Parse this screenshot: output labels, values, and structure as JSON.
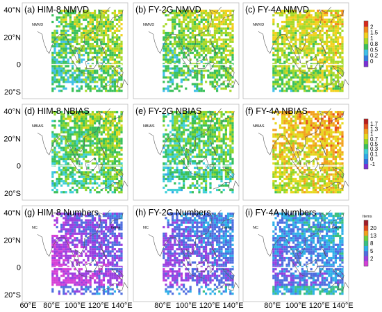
{
  "colormaps": {
    "nmvd": {
      "colors": [
        "#7b2fd6",
        "#2f7fe0",
        "#3fc0e8",
        "#39c05a",
        "#a6d92a",
        "#f2d11d",
        "#f28a1d",
        "#d62a1d"
      ],
      "labels": [
        "0",
        "0.2",
        "0.5",
        "0.8",
        "1",
        "1.5",
        "2"
      ]
    },
    "nbias": {
      "colors": [
        "#7b2fd6",
        "#2f70e0",
        "#2fa8e8",
        "#3fd0d8",
        "#39c05a",
        "#8fd62a",
        "#e6d81d",
        "#f2a01d",
        "#e5521d",
        "#b81d1d"
      ],
      "labels": [
        "-1",
        "0",
        "0.1",
        "0.3",
        "0.5",
        "0.7",
        "1",
        "1.3",
        "1.7"
      ]
    },
    "numbers": {
      "colors": [
        "#d53fd6",
        "#9b3fe0",
        "#4f6ee0",
        "#2fb0e8",
        "#39c080",
        "#6fcf3a",
        "#f2a01d",
        "#e04a1d",
        "#a01d2a"
      ],
      "labels": [
        "2",
        "5",
        "8",
        "13",
        "20"
      ]
    }
  },
  "panels": [
    {
      "title": "(a) HIM-8 NMVD",
      "inner_label": "NMVD",
      "corner_label": "",
      "metric": "nmvd",
      "satellite": "HIM-8"
    },
    {
      "title": "(b) FY-2G NMVD",
      "inner_label": "NMVD",
      "corner_label": "",
      "metric": "nmvd",
      "satellite": "FY-2G"
    },
    {
      "title": "(c) FY-4A NMVD",
      "inner_label": "NMVD",
      "corner_label": "",
      "metric": "nmvd",
      "satellite": "FY-4A"
    },
    {
      "title": "(d) HIM-8 NBIAS",
      "inner_label": "NBIAS",
      "corner_label": "",
      "metric": "nbias",
      "satellite": "HIM-8"
    },
    {
      "title": "(e) FY-2G NBIAS",
      "inner_label": "NBIAS",
      "corner_label": "",
      "metric": "nbias",
      "satellite": "FY-2G"
    },
    {
      "title": "(f) FY-4A NBIAS",
      "inner_label": "NBIAS",
      "corner_label": "",
      "metric": "nbias",
      "satellite": "FY-4A"
    },
    {
      "title": "(g) HIM-8 Numbers",
      "inner_label": "NC",
      "corner_label": "Items",
      "metric": "numbers",
      "satellite": "HIM-8"
    },
    {
      "title": "(h) FY-2G Numbers",
      "inner_label": "NC",
      "corner_label": "Items",
      "metric": "numbers",
      "satellite": "FY-2G"
    },
    {
      "title": "(i) FY-4A Numbers",
      "inner_label": "NC",
      "corner_label": "Items",
      "metric": "numbers",
      "satellite": "FY-4A"
    }
  ],
  "lat_labels": [
    "40°N",
    "20°N",
    "0",
    "20°S"
  ],
  "lon_labels": [
    "60°E",
    "80°E",
    "100°E",
    "120°E",
    "140°E"
  ],
  "colorbar_titles": [
    "",
    "",
    "Items"
  ]
}
